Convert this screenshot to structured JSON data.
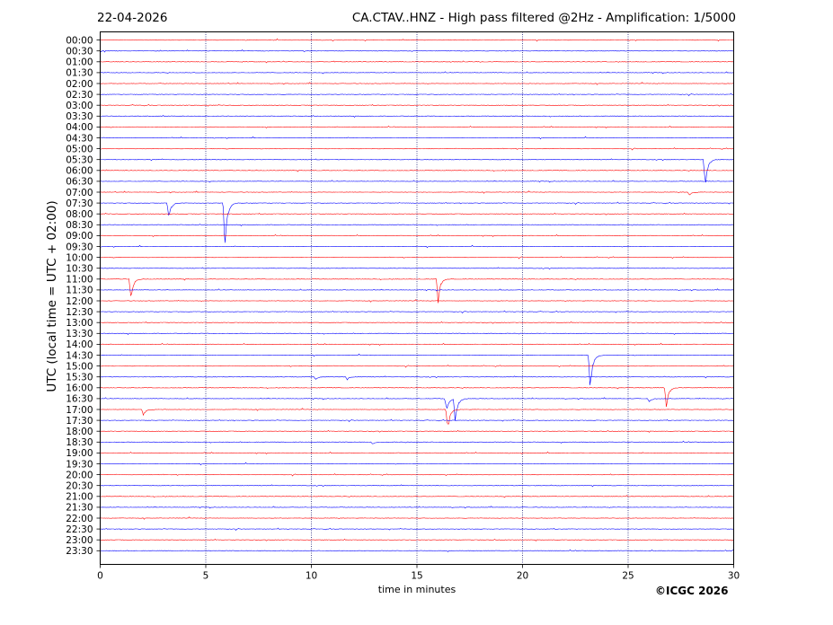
{
  "header": {
    "date": "22-04-2026",
    "title": "CA.CTAV..HNZ - High pass filtered @2Hz - Amplification: 1/5000"
  },
  "footer": {
    "credit": "©ICGC 2026"
  },
  "colors": {
    "red_trace": "#ff0000",
    "blue_trace": "#0000ff",
    "axis": "#000000"
  },
  "chart_data": {
    "type": "line",
    "title": "CA.CTAV..HNZ - High pass filtered @2Hz - Amplification: 1/5000",
    "xlabel": "time in minutes",
    "ylabel": "UTC (local time = UTC + 02:00)",
    "xlim": [
      0,
      30
    ],
    "x_ticks": [
      "0",
      "5",
      "10",
      "15",
      "20",
      "25",
      "30"
    ],
    "vertical_gridlines_minutes": [
      5,
      10,
      15,
      20,
      25
    ],
    "row_labels": [
      "00:00",
      "00:30",
      "01:00",
      "01:30",
      "02:00",
      "02:30",
      "03:00",
      "03:30",
      "04:00",
      "04:30",
      "05:00",
      "05:30",
      "06:00",
      "06:30",
      "07:00",
      "07:30",
      "08:00",
      "08:30",
      "09:00",
      "09:30",
      "10:00",
      "10:30",
      "11:00",
      "11:30",
      "12:00",
      "12:30",
      "13:00",
      "13:30",
      "14:00",
      "14:30",
      "15:00",
      "15:30",
      "16:00",
      "16:30",
      "17:00",
      "17:30",
      "18:00",
      "18:30",
      "19:00",
      "19:30",
      "20:00",
      "20:30",
      "21:00",
      "21:30",
      "22:00",
      "22:30",
      "23:00",
      "23:30"
    ],
    "row_colors_pattern": [
      "red",
      "blue"
    ],
    "events": [
      {
        "row": "05:30",
        "minute": 28.65,
        "amplitude": 3.0
      },
      {
        "row": "07:30",
        "minute": 3.25,
        "amplitude": 1.6
      },
      {
        "row": "07:30",
        "minute": 5.9,
        "amplitude": 5.0
      },
      {
        "row": "11:00",
        "minute": 1.45,
        "amplitude": 2.0
      },
      {
        "row": "11:00",
        "minute": 16.0,
        "amplitude": 2.3
      },
      {
        "row": "14:30",
        "minute": 23.2,
        "amplitude": 4.0
      },
      {
        "row": "16:00",
        "minute": 26.8,
        "amplitude": 2.2
      },
      {
        "row": "16:30",
        "minute": 16.4,
        "amplitude": 1.4
      },
      {
        "row": "16:30",
        "minute": 16.8,
        "amplitude": 2.8
      },
      {
        "row": "17:00",
        "minute": 16.45,
        "amplitude": 2.3
      },
      {
        "row": "17:00",
        "minute": 2.05,
        "amplitude": 0.6
      },
      {
        "row": "15:30",
        "minute": 10.2,
        "amplitude": 0.3
      },
      {
        "row": "15:30",
        "minute": 11.7,
        "amplitude": 0.3
      },
      {
        "row": "07:00",
        "minute": 27.9,
        "amplitude": 0.35
      },
      {
        "row": "16:30",
        "minute": 26.0,
        "amplitude": 0.35
      },
      {
        "row": "18:30",
        "minute": 12.9,
        "amplitude": 0.25
      }
    ]
  }
}
